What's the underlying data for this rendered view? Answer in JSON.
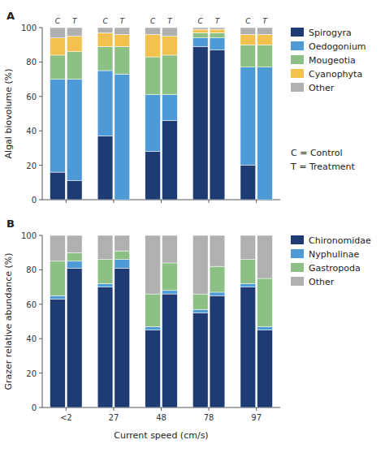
{
  "chart_data": [
    {
      "type": "bar",
      "stacked": true,
      "title": "A",
      "ylabel": "Algal biovolume  (%)",
      "categories": [
        "<2",
        "27",
        "48",
        "78",
        "97"
      ],
      "groups": [
        "C",
        "T"
      ],
      "tick_labels": "y",
      "ylim": [
        0,
        100
      ],
      "yticks": [
        0,
        20,
        40,
        60,
        80,
        100
      ],
      "legend": "right",
      "annotations": [
        "C = Control",
        "T = Treatment"
      ],
      "series": [
        {
          "name": "Spirogyra",
          "color": "#1f3b73",
          "values": [
            [
              16,
              11
            ],
            [
              37,
              0
            ],
            [
              28,
              46
            ],
            [
              89,
              87
            ],
            [
              20,
              0
            ]
          ]
        },
        {
          "name": "Oedogonium",
          "color": "#4e9ad6",
          "values": [
            [
              54,
              59
            ],
            [
              38,
              73
            ],
            [
              33,
              15
            ],
            [
              5,
              7
            ],
            [
              57,
              77
            ]
          ]
        },
        {
          "name": "Mougeotia",
          "color": "#8cc084",
          "values": [
            [
              14,
              16
            ],
            [
              14,
              16
            ],
            [
              22,
              23
            ],
            [
              3,
              3
            ],
            [
              13,
              13
            ]
          ]
        },
        {
          "name": "Cyanophyta",
          "color": "#f2c14e",
          "values": [
            [
              10,
              9
            ],
            [
              8,
              7
            ],
            [
              13,
              11
            ],
            [
              2,
              2
            ],
            [
              6,
              6
            ]
          ]
        },
        {
          "name": "Other",
          "color": "#b0b0b0",
          "values": [
            [
              6,
              5
            ],
            [
              3,
              4
            ],
            [
              4,
              5
            ],
            [
              1,
              1
            ],
            [
              4,
              4
            ]
          ]
        }
      ]
    },
    {
      "type": "bar",
      "stacked": true,
      "title": "B",
      "ylabel": "Grazer relative abundance (%)",
      "xlabel": "Current speed  (cm/s)",
      "categories": [
        "<2",
        "27",
        "48",
        "78",
        "97"
      ],
      "ylim": [
        0,
        100
      ],
      "yticks": [
        0,
        20,
        40,
        60,
        80,
        100
      ],
      "legend": "right",
      "series": [
        {
          "name": "Chironomidae",
          "color": "#1f3b73",
          "values": [
            [
              63,
              81
            ],
            [
              70,
              81
            ],
            [
              45,
              66
            ],
            [
              55,
              65
            ],
            [
              70,
              45
            ]
          ]
        },
        {
          "name": "Nyphulinae",
          "color": "#4e9ad6",
          "values": [
            [
              2,
              4
            ],
            [
              2,
              5
            ],
            [
              2,
              2
            ],
            [
              2,
              2
            ],
            [
              2,
              2
            ]
          ]
        },
        {
          "name": "Gastropoda",
          "color": "#8cc084",
          "values": [
            [
              20,
              5
            ],
            [
              14,
              5
            ],
            [
              19,
              16
            ],
            [
              9,
              15
            ],
            [
              14,
              28
            ]
          ]
        },
        {
          "name": "Other",
          "color": "#b0b0b0",
          "values": [
            [
              15,
              10
            ],
            [
              14,
              9
            ],
            [
              34,
              16
            ],
            [
              34,
              18
            ],
            [
              14,
              25
            ]
          ]
        }
      ]
    }
  ]
}
